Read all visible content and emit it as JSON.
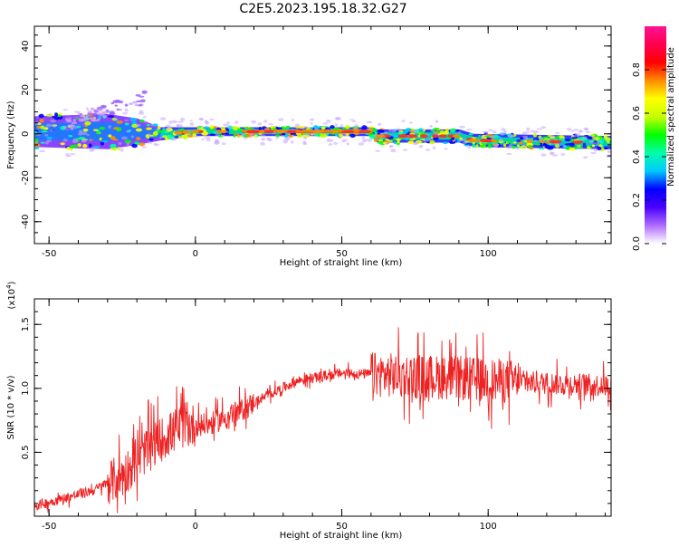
{
  "title": "C2E5.2023.195.18.32.G27",
  "chart_data": [
    {
      "type": "heatmap",
      "xlabel": "Height of straight line (km)",
      "ylabel": "Frequency (Hz)",
      "xlim": [
        -55,
        142
      ],
      "ylim": [
        -50,
        49
      ],
      "xticks": [
        -50,
        0,
        50,
        100
      ],
      "yticks": [
        -40,
        -20,
        0,
        20,
        40
      ],
      "colorbar": {
        "label": "Normalized spectral amplitude",
        "range": [
          0,
          1
        ],
        "ticks": [
          "0.0",
          "0.2",
          "0.4",
          "0.6",
          "0.8"
        ],
        "colors": [
          "#ffffff",
          "#b06cff",
          "#4a00ff",
          "#0000ff",
          "#00c8ff",
          "#00ffaa",
          "#00ff00",
          "#c8ff00",
          "#ffff00",
          "#ff8c00",
          "#ff0000",
          "#ff0050",
          "#ff1493"
        ]
      },
      "band": [
        {
          "x": -55,
          "center": 1,
          "halfwidth": 7
        },
        {
          "x": -30,
          "center": 1,
          "halfwidth": 8
        },
        {
          "x": -20,
          "center": 1,
          "halfwidth": 6
        },
        {
          "x": -12,
          "center": 0,
          "halfwidth": 3
        },
        {
          "x": 0,
          "center": 1,
          "halfwidth": 2
        },
        {
          "x": 20,
          "center": 1,
          "halfwidth": 2
        },
        {
          "x": 60,
          "center": 1,
          "halfwidth": 2
        },
        {
          "x": 62,
          "center": -1,
          "halfwidth": 3
        },
        {
          "x": 90,
          "center": -1,
          "halfwidth": 3
        },
        {
          "x": 95,
          "center": -3,
          "halfwidth": 3
        },
        {
          "x": 142,
          "center": -4,
          "halfwidth": 3
        }
      ]
    },
    {
      "type": "line",
      "xlabel": "Height of straight line (km)",
      "ylabel": "SNR (10 * v/v)",
      "yscale_label": "(x10",
      "yscale_exponent": "4",
      "yscale_close": ")",
      "xlim": [
        -55,
        142
      ],
      "ylim": [
        0,
        1.7
      ],
      "xticks": [
        -50,
        0,
        50,
        100
      ],
      "yticks": [
        0.5,
        1.0,
        1.5
      ],
      "color": "#ee2222",
      "trend": [
        {
          "x": -55,
          "y": 0.08
        },
        {
          "x": -35,
          "y": 0.2
        },
        {
          "x": -25,
          "y": 0.32
        },
        {
          "x": -15,
          "y": 0.55
        },
        {
          "x": -5,
          "y": 0.7
        },
        {
          "x": 5,
          "y": 0.72
        },
        {
          "x": 15,
          "y": 0.82
        },
        {
          "x": 25,
          "y": 0.95
        },
        {
          "x": 35,
          "y": 1.06
        },
        {
          "x": 50,
          "y": 1.12
        },
        {
          "x": 70,
          "y": 1.1
        },
        {
          "x": 90,
          "y": 1.08
        },
        {
          "x": 110,
          "y": 1.05
        },
        {
          "x": 142,
          "y": 1.02
        }
      ]
    }
  ]
}
